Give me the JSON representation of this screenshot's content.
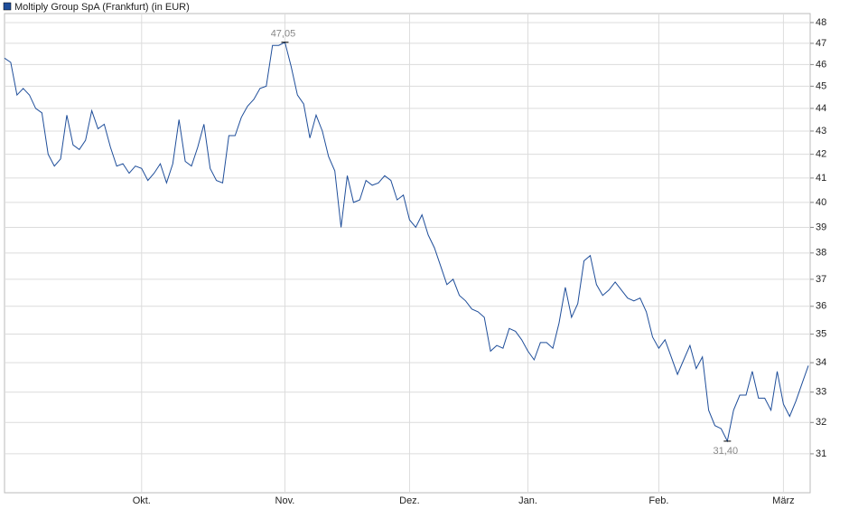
{
  "chart_data": {
    "type": "line",
    "categories": [
      null,
      null,
      null,
      null,
      null,
      null,
      null,
      null,
      null,
      null,
      null,
      null,
      null,
      null,
      null,
      null,
      null,
      null,
      null,
      null,
      null,
      null,
      "Okt.",
      null,
      null,
      null,
      null,
      null,
      null,
      null,
      null,
      null,
      null,
      null,
      null,
      null,
      null,
      null,
      null,
      null,
      null,
      null,
      null,
      null,
      null,
      "Nov.",
      null,
      null,
      null,
      null,
      null,
      null,
      null,
      null,
      null,
      null,
      null,
      null,
      null,
      null,
      null,
      null,
      null,
      null,
      null,
      "Dez.",
      null,
      null,
      null,
      null,
      null,
      null,
      null,
      null,
      null,
      null,
      null,
      null,
      null,
      null,
      null,
      null,
      null,
      null,
      "Jan.",
      null,
      null,
      null,
      null,
      null,
      null,
      null,
      null,
      null,
      null,
      null,
      null,
      null,
      null,
      null,
      null,
      null,
      null,
      null,
      null,
      "Feb.",
      null,
      null,
      null,
      null,
      null,
      null,
      null,
      null,
      null,
      null,
      null,
      null,
      null,
      null,
      null,
      null,
      null,
      null,
      null,
      "März",
      null,
      null,
      null,
      null
    ],
    "series": [
      {
        "name": "Moltiply Group SpA (Frankfurt) (in EUR)",
        "color": "#1f4e9a",
        "values": [
          46.3,
          46.1,
          44.6,
          44.9,
          44.6,
          44.0,
          43.8,
          42.0,
          41.5,
          41.8,
          43.7,
          42.4,
          42.2,
          42.6,
          43.9,
          43.1,
          43.3,
          42.3,
          41.5,
          41.6,
          41.2,
          41.5,
          41.4,
          40.9,
          41.2,
          41.6,
          40.8,
          41.6,
          43.5,
          41.7,
          41.5,
          42.3,
          43.3,
          41.4,
          40.9,
          40.8,
          42.8,
          42.8,
          43.6,
          44.1,
          44.4,
          44.9,
          45.0,
          46.9,
          46.9,
          47.05,
          45.9,
          44.6,
          44.2,
          42.7,
          43.7,
          43.0,
          41.9,
          41.3,
          39.0,
          41.1,
          40.0,
          40.1,
          40.9,
          40.7,
          40.8,
          41.1,
          40.9,
          40.1,
          40.3,
          39.3,
          39.0,
          39.5,
          38.7,
          38.2,
          37.5,
          36.8,
          37.0,
          36.4,
          36.2,
          35.9,
          35.8,
          35.6,
          34.4,
          34.6,
          34.5,
          35.2,
          35.1,
          34.8,
          34.4,
          34.1,
          34.7,
          34.7,
          34.5,
          35.4,
          36.7,
          35.6,
          36.1,
          37.7,
          37.9,
          36.8,
          36.4,
          36.6,
          36.9,
          36.6,
          36.3,
          36.2,
          36.3,
          35.8,
          34.9,
          34.5,
          34.8,
          34.2,
          33.6,
          34.1,
          34.6,
          33.8,
          34.2,
          32.4,
          31.9,
          31.8,
          31.4,
          32.4,
          32.9,
          32.9,
          33.7,
          32.8,
          32.8,
          32.4,
          33.7,
          32.6,
          32.2,
          32.7,
          33.3,
          33.9
        ],
        "value_labels": [
          null,
          null,
          null,
          null,
          null,
          null,
          null,
          null,
          null,
          null,
          null,
          null,
          null,
          null,
          null,
          null,
          null,
          null,
          null,
          null,
          null,
          null,
          null,
          null,
          null,
          null,
          null,
          null,
          null,
          null,
          null,
          null,
          null,
          null,
          null,
          null,
          null,
          null,
          null,
          null,
          null,
          null,
          null,
          null,
          null,
          "47,05",
          null,
          null,
          null,
          null,
          null,
          null,
          null,
          null,
          null,
          null,
          null,
          null,
          null,
          null,
          null,
          null,
          null,
          null,
          null,
          null,
          null,
          null,
          null,
          null,
          null,
          null,
          null,
          null,
          null,
          null,
          null,
          null,
          null,
          null,
          null,
          null,
          null,
          null,
          null,
          null,
          null,
          null,
          null,
          null,
          null,
          null,
          null,
          null,
          null,
          null,
          null,
          null,
          null,
          null,
          null,
          null,
          null,
          null,
          null,
          null,
          null,
          null,
          null,
          null,
          null,
          null,
          null,
          null,
          null,
          null,
          "31,40",
          null,
          null,
          null,
          null,
          null,
          null,
          null,
          null,
          null,
          null,
          null,
          null,
          null
        ]
      }
    ],
    "ylim": [
      29.8,
      48.44
    ],
    "yticks": [
      31,
      32,
      33,
      34,
      35,
      36,
      37,
      38,
      39,
      40,
      41,
      42,
      43,
      44,
      45,
      46,
      47,
      48
    ],
    "log_scale": true,
    "grid": true
  }
}
